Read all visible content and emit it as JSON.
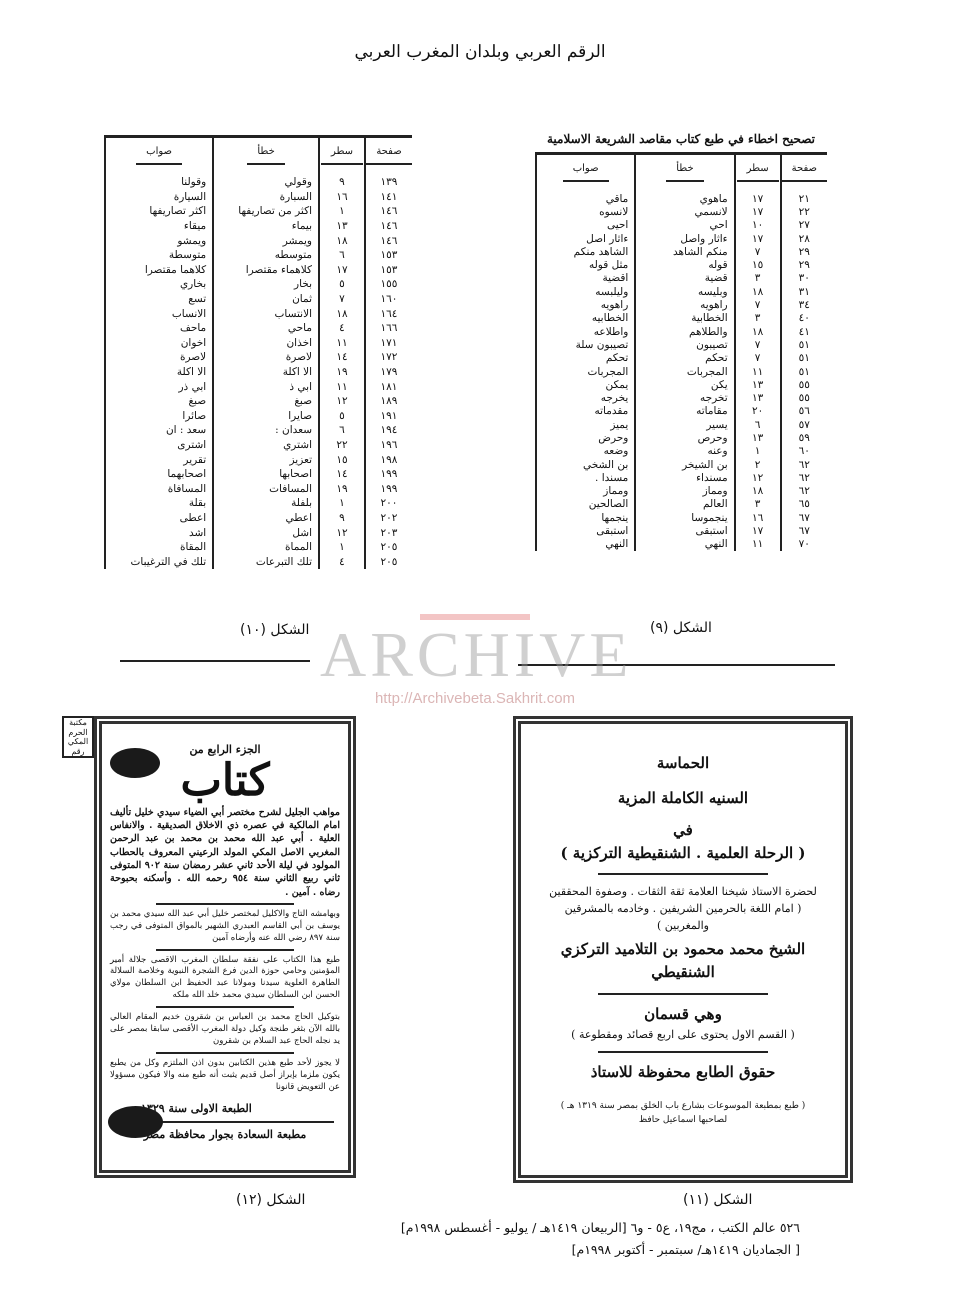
{
  "running_head": "الرقم العربي وبلدان المغرب العربي",
  "figure9": {
    "title": "تصحيح اخطاء في طبع كتاب مقاصد الشريعة الاسلامية",
    "headers": {
      "page": "صفحة",
      "line": "سطر",
      "wrong": "خطأ",
      "correct": "صواب"
    },
    "rows": [
      [
        "٢١",
        "١٧",
        "ماهوي",
        "ماقي"
      ],
      [
        "٢٢",
        "١٧",
        "لانسمي",
        "لانسوه"
      ],
      [
        "٢٧",
        "١٠",
        "احي",
        "احيى"
      ],
      [
        "٢٨",
        "١٧",
        "ءاثار واصل",
        "ءاثار اصل"
      ],
      [
        "٢٩",
        "٧",
        "منكم الشاهد",
        "الشاهد منكم"
      ],
      [
        "٢٩",
        "١٥",
        "قوله",
        "مثل قوله"
      ],
      [
        "٣٠",
        "٣",
        "قضية",
        "اقضية"
      ],
      [
        "٣١",
        "١٨",
        "وبليسه",
        "وليلبسه"
      ],
      [
        "٣٤",
        "٧",
        "راهويه",
        "راهويه"
      ],
      [
        "٤٠",
        "٣",
        "الخطابية",
        "الخطابيه"
      ],
      [
        "٤١",
        "١٨",
        "والطلاهم",
        "واطلاعه"
      ],
      [
        "٥١",
        "٧",
        "تصيبون",
        "تصيبون سلة"
      ],
      [
        "٥١",
        "٧",
        "تحكم",
        "تحكم"
      ],
      [
        "٥١",
        "١١",
        "المجربات",
        "المجربات"
      ],
      [
        "٥٥",
        "١٣",
        "يكن",
        "يمكن"
      ],
      [
        "٥٥",
        "١٣",
        "تخرجه",
        "يخرجه"
      ],
      [
        "٥٦",
        "٢٠",
        "مقاماته",
        "مقدماته"
      ],
      [
        "٥٧",
        "٦",
        "يسير",
        "يميز"
      ],
      [
        "٥٩",
        "١٣",
        "وحرص",
        "وحرض"
      ],
      [
        "٦٠",
        "١",
        "وعنه",
        "وضعه"
      ],
      [
        "٦٢",
        "٢",
        "بن الشيخر",
        "بن الشخي"
      ],
      [
        "٦٢",
        "١٢",
        "مسنداء",
        "مسندا ."
      ],
      [
        "٦٢",
        "١٨",
        "ومماز",
        "ومماز"
      ],
      [
        "٦٥",
        "٣",
        "العالم",
        "الصالحين"
      ],
      [
        "٦٧",
        "١٦",
        "ينجموسا",
        "ينجمها"
      ],
      [
        "٦٧",
        "١٧",
        "استبقى",
        "استبقى"
      ],
      [
        "٧٠",
        "١١",
        "النهي",
        "النهي"
      ]
    ],
    "caption": "الشكل (٩)"
  },
  "figure10": {
    "headers": {
      "page": "صفحة",
      "line": "سطر",
      "wrong": "خطأ",
      "correct": "صواب"
    },
    "rows": [
      [
        "١٣٩",
        "٩",
        "وقولي",
        "وقولنا"
      ],
      [
        "١٤١",
        "١٦",
        "السبارة",
        "السيارة"
      ],
      [
        "١٤٦",
        "١",
        "اكثر من تصاريفها",
        "اكثر تصاريفها"
      ],
      [
        "١٤٦",
        "١٣",
        "بيماء",
        "ميقاء"
      ],
      [
        "١٤٦",
        "١٨",
        "ويمشر",
        "ويمشو"
      ],
      [
        "١٥٣",
        "٦",
        "متوسطه",
        "متوسطة"
      ],
      [
        "١٥٣",
        "١٧",
        "كلاهماء مقتصرا",
        "كلاهما مقتصرا"
      ],
      [
        "١٥٥",
        "٥",
        "بخار",
        "بخاري"
      ],
      [
        "١٦٠",
        "٧",
        "ثمان",
        "تسع"
      ],
      [
        "١٦٤",
        "١٨",
        "الانتساب",
        "الانساب"
      ],
      [
        "١٦٦",
        "٤",
        "ماحي",
        "ماحف"
      ],
      [
        "١٧١",
        "١١",
        "اخذان",
        "اخوان"
      ],
      [
        "١٧٢",
        "١٤",
        "لاصرة",
        "لاصرة"
      ],
      [
        "١٧٩",
        "١٩",
        "الا اكلة",
        "الا اكلة"
      ],
      [
        "١٨١",
        "١١",
        "ابي ذ",
        "ابي ذر"
      ],
      [
        "١٨٩",
        "١٢",
        "صبغ",
        "صبغ"
      ],
      [
        "١٩١",
        "٥",
        "صايرا",
        "صائرا"
      ],
      [
        "١٩٤",
        "٦",
        "سعدان :",
        "سعد : ان"
      ],
      [
        "١٩٦",
        "٢٢",
        "اشتري",
        "اشترى"
      ],
      [
        "١٩٨",
        "١٥",
        "تعزيز",
        "تقرير"
      ],
      [
        "١٩٩",
        "١٤",
        "اصحابها",
        "اصحابهما"
      ],
      [
        "١٩٩",
        "١٩",
        "المسافات",
        "المسافاة"
      ],
      [
        "٢٠٠",
        "١",
        "بلفلة",
        "بقلة"
      ],
      [
        "٢٠٢",
        "٩",
        "اعطي",
        "اعطى"
      ],
      [
        "٢٠٣",
        "١٢",
        "اشل",
        "اشد"
      ],
      [
        "٢٠٥",
        "١",
        "المماة",
        "المقاة"
      ],
      [
        "٢٠٥",
        "٤",
        "تلك التبرعات",
        "تلك في الترغيبات"
      ]
    ],
    "caption": "الشكل (١٠)"
  },
  "figure11": {
    "lines": [
      "الحماسة",
      "السنيه الكاملة المزية",
      "في",
      "( الرحلة العلمية . الشنقيطية التركزية )",
      "لحضرة الاستاذ شيخنا العلامة ثقة الثقات . وصفوة المحققين",
      "( امام اللغة بالحرمين الشريفين . وخادمه بالمشرقين والمغربين )",
      "الشيخ محمد محمود بن التلاميد التركزي الشنقيطي",
      "وهي قسمان",
      "( القسم الاول يحتوى على اربع قصائد ومقطوعة )",
      "حقوق الطابع محفوظة للاستاذ",
      "( طبع بمطبعة الموسوعات بشارع باب الخلق بمصر سنة ١٣١٩ هـ )",
      "لصاحبها اسماعيل حافظ"
    ],
    "caption": "الشكل (١١)"
  },
  "figure12": {
    "corner_label": "مكتبة الحرم المكي رقم",
    "lines": [
      "الجزء الرابع من",
      "كتاب",
      "مواهب الجليل لشرح مختصر أبي الضياء سيدي خليل تأليف امام المالكية في عصره ذي الاخلاق الصديقية . والانفاس العلية . أبي عبد الله محمد بن محمد بن عبد الرحمن المغربي الاصل المكي المولد الرعيني المعروف بالحطاب المولود في ليلة الأحد ثاني عشر رمضان سنة ٩٠٢ المتوفى ثاني ربيع الثاني سنة ٩٥٤ رحمه الله . وأسكنه بحبوحة رضاه . آمين .",
      "وبهامشه التاج والاكليل لمختصر خليل أبي عبد الله سيدي محمد بن يوسف بن أبي القاسم العبدري الشهير بالمواق المتوفى في رجب سنة ٨٩٧ رضي الله عنه وأرضاه آمين",
      "طبع هذا الكتاب على نفقة سلطان المغرب الاقصى جلالة أمير المؤمنين وحامي حوزة الدين فرع الشجرة النبوية وخلاصة السلالة الطاهرة العلوية سيدنا ومولانا عبد الحفيظ ابن السلطان مولاي الحسن ابن السلطان سيدي محمد خلد الله ملكه",
      "بتوكيل الحاج محمد بن العباس بن شقرون خديم المقام العالي بالله الآن بثغر طنجة وكيل دولة المغرب الأقصى سابقا بمصر على يد نجله الحاج عبد السلام بن شقرون",
      "لا يجوز لأحد طبع هذين الكتابين بدون اذن الملتزم وكل من يطبع يكون ملزما بإبراز أصل قديم يثبت أنه طبع منه والا فيكون مسؤولا عن التعويض قانونا",
      "الطبعة الاولى سنة ١٣٢٩ هـ",
      "مطبعة السعادة بجوار محافظة مصر"
    ],
    "caption": "الشكل (١٢)"
  },
  "watermark": {
    "word": "ARCHIVE",
    "url": "http://Archivebeta.Sakhrit.com"
  },
  "footer": {
    "line1": "٥٢٦ عالم الكتب ، مج١٩، ع٥ - و٦ [الربيعان ١٤١٩هـ / يوليو - أغسطس ١٩٩٨م]",
    "line2": "[ الجماديان ١٤١٩هـ/ سبتمبر - أكتوبر ١٩٩٨م]"
  }
}
